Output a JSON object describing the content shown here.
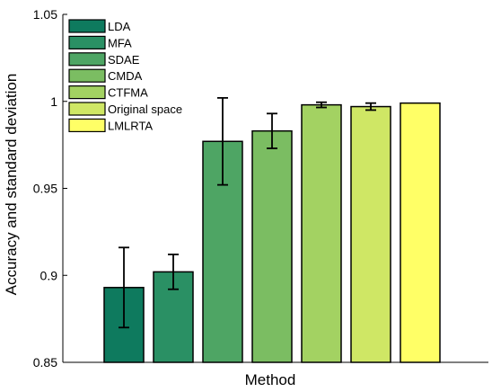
{
  "chart_data": {
    "type": "bar",
    "title": "",
    "xlabel": "Method",
    "ylabel": "Accuracy and standard deviation",
    "ylim": [
      0.85,
      1.05
    ],
    "yticks": [
      "0.85",
      "0.9",
      "0.95",
      "1",
      "1.05"
    ],
    "ytick_values": [
      0.85,
      0.9,
      0.95,
      1.0,
      1.05
    ],
    "grid": false,
    "legend_position": "top-left",
    "error_bars": true,
    "series": [
      {
        "name": "LDA",
        "value": 0.893,
        "error": 0.023,
        "color": "#0e7a5e"
      },
      {
        "name": "MFA",
        "value": 0.902,
        "error": 0.01,
        "color": "#2a9064"
      },
      {
        "name": "SDAE",
        "value": 0.977,
        "error": 0.025,
        "color": "#4ea564"
      },
      {
        "name": "CMDA",
        "value": 0.983,
        "error": 0.01,
        "color": "#7bbd62"
      },
      {
        "name": "CTFMA",
        "value": 0.998,
        "error": 0.0015,
        "color": "#a3d262"
      },
      {
        "name": "Original space",
        "value": 0.997,
        "error": 0.002,
        "color": "#cfe765"
      },
      {
        "name": "LMLRTA",
        "value": 0.999,
        "error": 0.0,
        "color": "#ffff66"
      }
    ]
  }
}
